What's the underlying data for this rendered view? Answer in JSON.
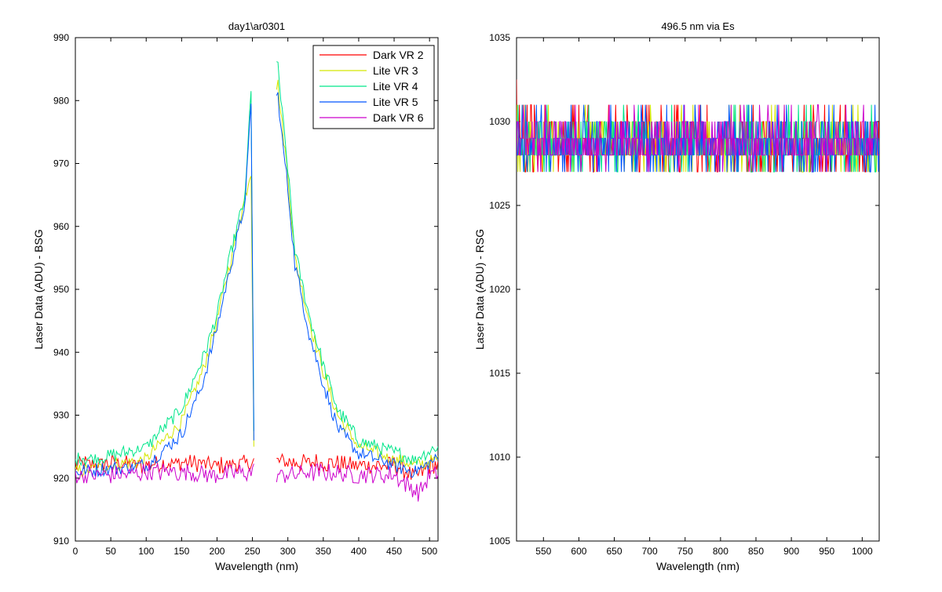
{
  "chart_data": [
    {
      "type": "line",
      "title": "day1\\ar0301",
      "xlabel": "Wavelength (nm)",
      "ylabel": "Laser Data (ADU) - BSG",
      "xlim": [
        0,
        512
      ],
      "ylim": [
        910,
        990
      ],
      "xticks": [
        0,
        50,
        100,
        150,
        200,
        250,
        300,
        350,
        400,
        450,
        500
      ],
      "yticks": [
        910,
        920,
        930,
        940,
        950,
        960,
        970,
        980,
        990
      ],
      "legend_position": "top-right",
      "series": [
        {
          "name": "Dark VR 2",
          "color": "#ff0000",
          "x": [
            0,
            50,
            100,
            150,
            200,
            250,
            300,
            350,
            400,
            450,
            480,
            500,
            512
          ],
          "y": [
            922,
            922.5,
            922,
            922.5,
            922,
            922.5,
            922.5,
            922.5,
            922,
            922,
            920,
            922,
            922
          ]
        },
        {
          "name": "Lite VR 3",
          "color": "#d4e600",
          "x": [
            0,
            50,
            100,
            150,
            180,
            200,
            220,
            240,
            248,
            252,
            285,
            290,
            300,
            310,
            330,
            350,
            370,
            400,
            450,
            480,
            512
          ],
          "y": [
            921,
            922,
            923,
            929,
            937,
            945,
            955,
            965,
            969,
            926,
            984,
            978,
            968,
            955,
            945,
            937,
            930,
            925,
            923,
            922,
            923
          ]
        },
        {
          "name": "Lite VR 4",
          "color": "#00e68a",
          "x": [
            0,
            50,
            100,
            150,
            180,
            200,
            220,
            240,
            248,
            252,
            285,
            290,
            300,
            310,
            330,
            350,
            370,
            400,
            450,
            480,
            512
          ],
          "y": [
            923,
            923.5,
            925,
            931,
            939,
            946,
            956,
            965,
            982,
            927,
            987,
            980,
            969,
            956,
            946,
            938,
            931,
            926,
            924,
            923,
            925
          ]
        },
        {
          "name": "Lite VR 5",
          "color": "#0055ff",
          "x": [
            0,
            50,
            100,
            150,
            180,
            200,
            220,
            240,
            248,
            252,
            285,
            290,
            300,
            310,
            330,
            350,
            370,
            400,
            450,
            480,
            512
          ],
          "y": [
            921,
            921.5,
            922,
            927,
            935,
            944,
            954,
            964,
            980,
            926,
            982,
            976,
            966,
            954,
            943,
            935,
            928,
            924,
            922,
            921,
            923
          ]
        },
        {
          "name": "Dark VR 6",
          "color": "#cc00cc",
          "x": [
            0,
            50,
            100,
            150,
            200,
            250,
            300,
            350,
            400,
            450,
            485,
            500,
            512
          ],
          "y": [
            920.5,
            920.5,
            921,
            921,
            920.5,
            921,
            920.5,
            921,
            920.5,
            920.5,
            917.5,
            920.5,
            920.5
          ]
        }
      ]
    },
    {
      "type": "line",
      "title": "496.5 nm via Es",
      "xlabel": "Wavelength (nm)",
      "ylabel": "Laser Data (ADU) - RSG",
      "xlim": [
        512,
        1024
      ],
      "ylim": [
        1005,
        1035
      ],
      "xticks": [
        550,
        600,
        650,
        700,
        750,
        800,
        850,
        900,
        950,
        1000
      ],
      "yticks": [
        1005,
        1010,
        1015,
        1020,
        1025,
        1030,
        1035
      ],
      "series": [
        {
          "name": "Dark VR 2",
          "color": "#ff0000",
          "x": [
            512,
            1024
          ],
          "y_mean": 1028.5,
          "y_range": [
            1026,
            1032.5
          ]
        },
        {
          "name": "Lite VR 3",
          "color": "#d4e600",
          "x": [
            512,
            1024
          ],
          "y_mean": 1028.6,
          "y_range": [
            1026,
            1031
          ]
        },
        {
          "name": "Lite VR 4",
          "color": "#00e68a",
          "x": [
            512,
            1024
          ],
          "y_mean": 1028.7,
          "y_range": [
            1026,
            1031
          ]
        },
        {
          "name": "Lite VR 5",
          "color": "#0055ff",
          "x": [
            512,
            1024
          ],
          "y_mean": 1028.6,
          "y_range": [
            1026,
            1031
          ]
        },
        {
          "name": "Dark VR 6",
          "color": "#cc00cc",
          "x": [
            512,
            1024
          ],
          "y_mean": 1028.8,
          "y_range": [
            1027,
            1031
          ]
        }
      ]
    }
  ]
}
